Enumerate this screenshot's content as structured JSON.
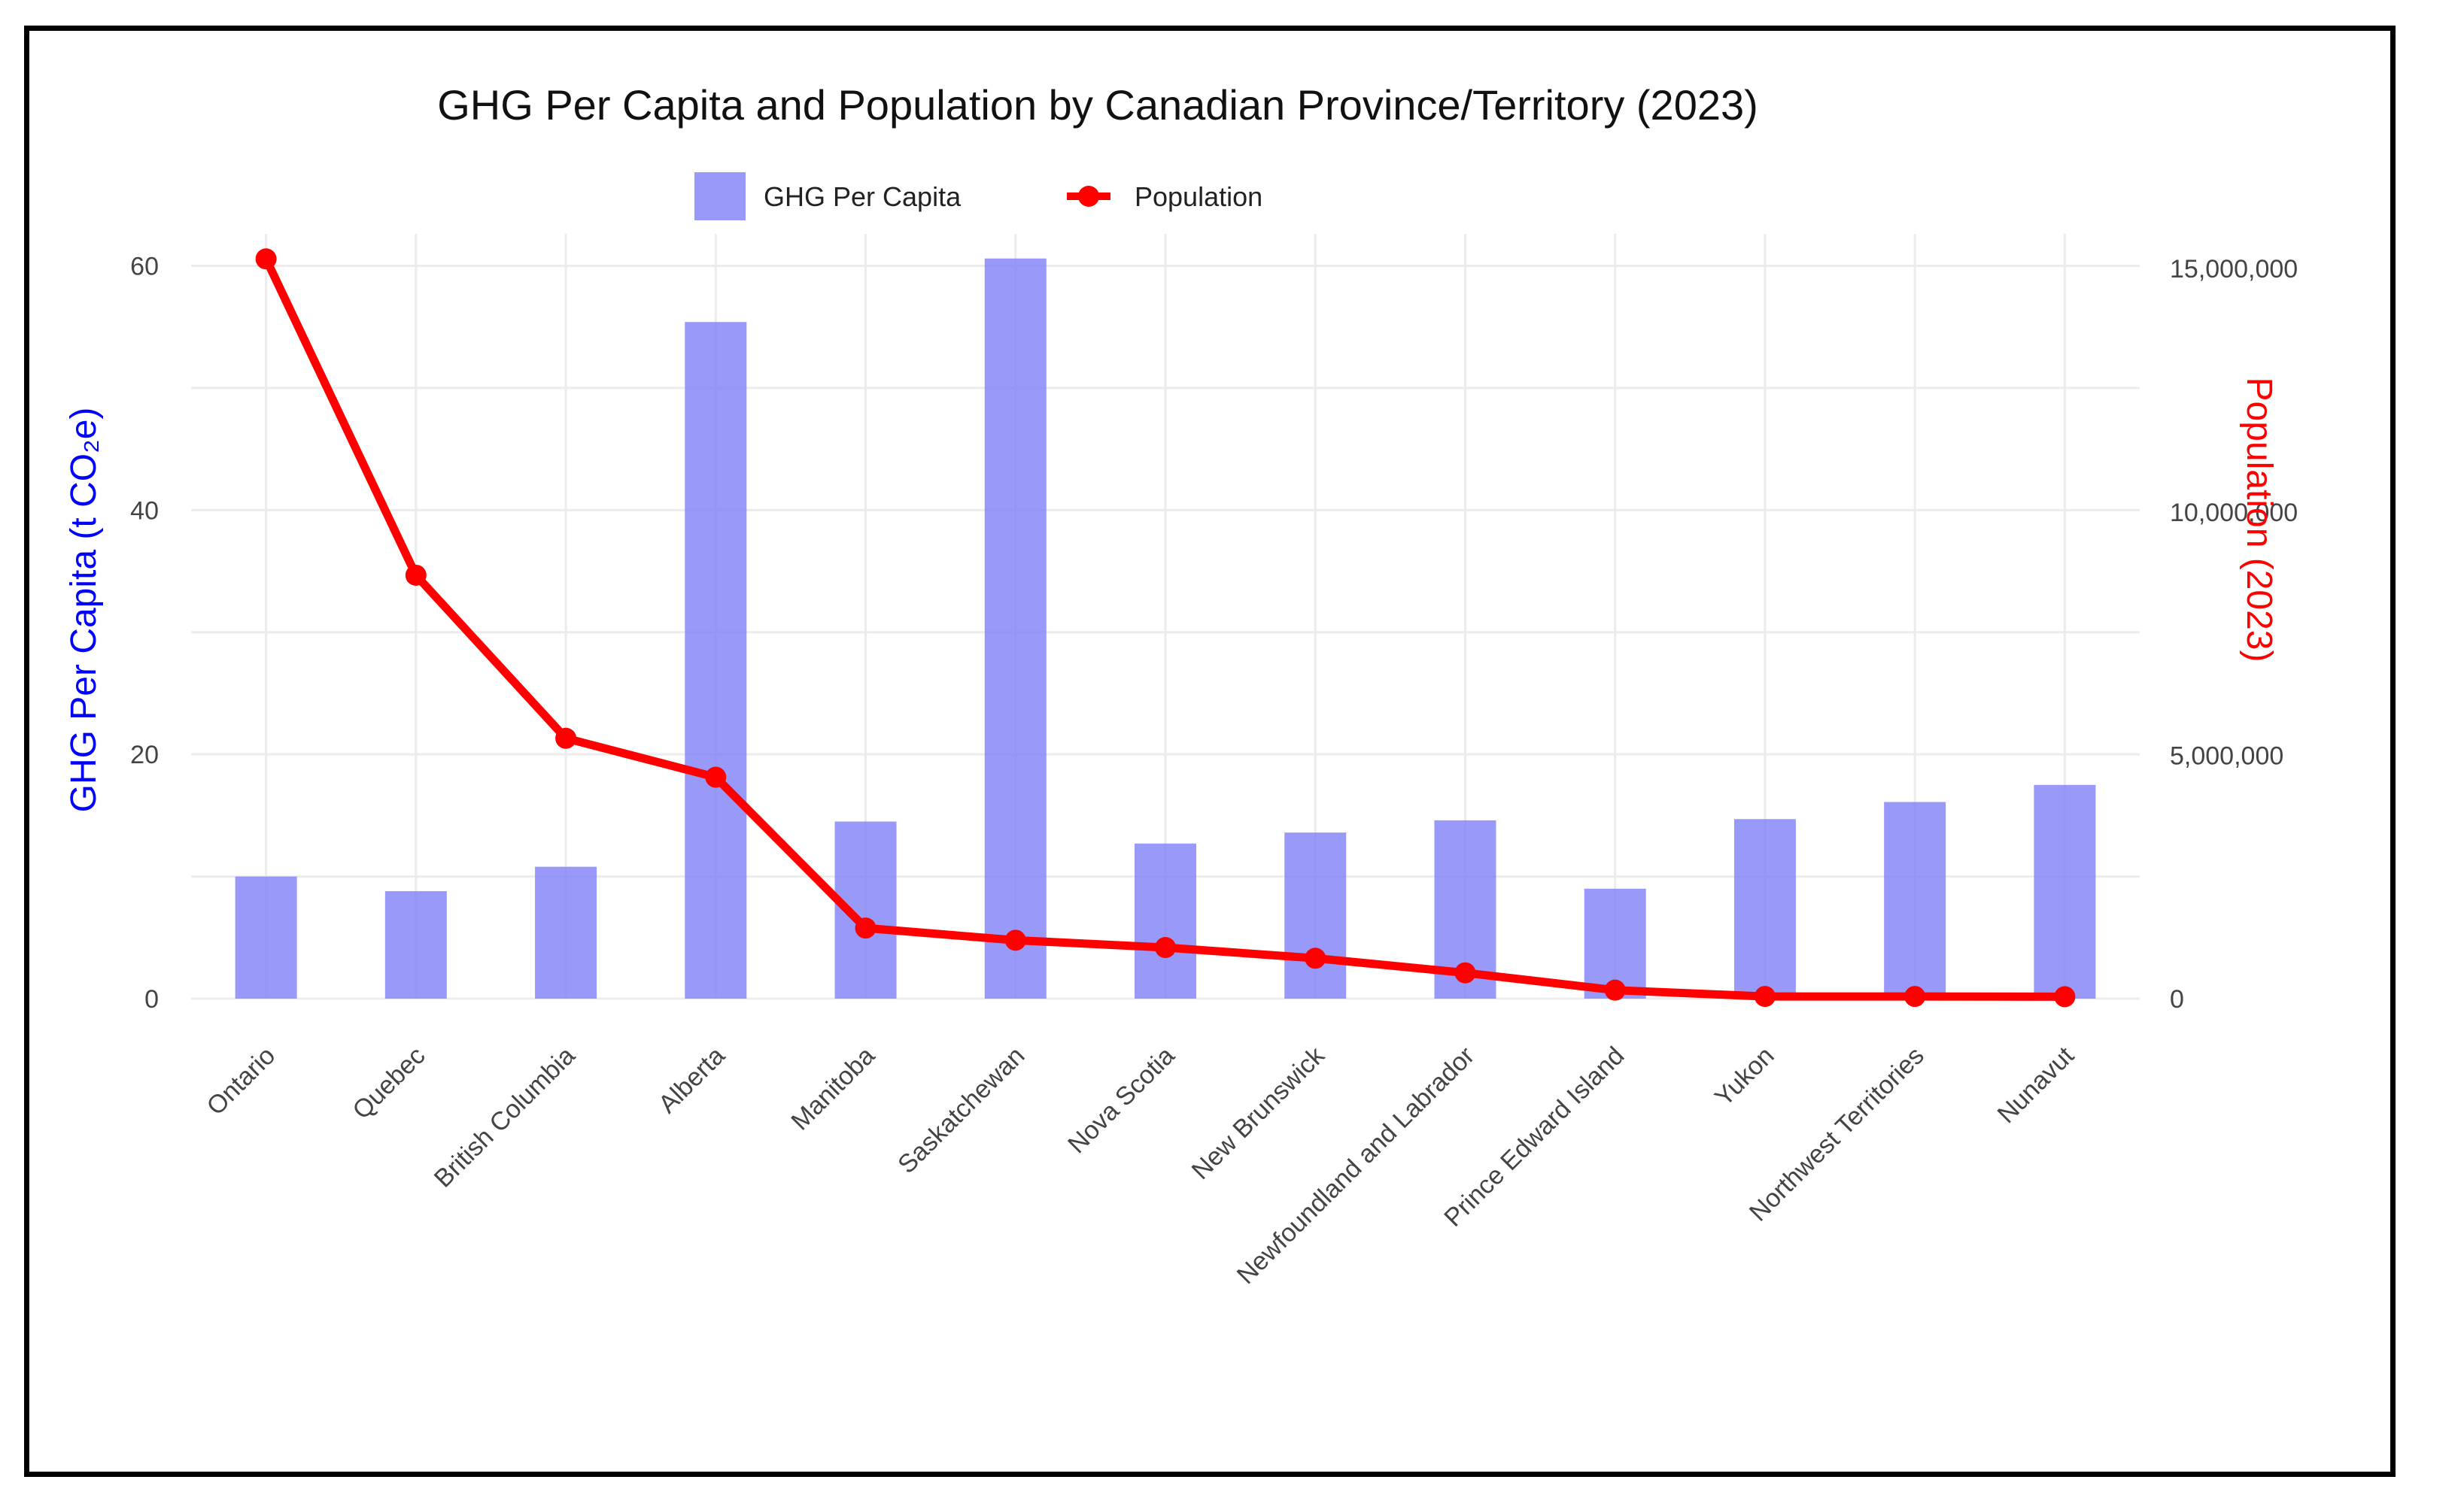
{
  "chart_data": {
    "type": "bar+line",
    "title": "GHG Per Capita and Population by Canadian Province/Territory (2023)",
    "categories": [
      "Ontario",
      "Quebec",
      "British Columbia",
      "Alberta",
      "Manitoba",
      "Saskatchewan",
      "Nova Scotia",
      "New Brunswick",
      "Newfoundland and Labrador",
      "Prince Edward Island",
      "Yukon",
      "Northwest Territories",
      "Nunavut"
    ],
    "series": [
      {
        "name": "GHG Per Capita",
        "type": "bar",
        "axis": "left",
        "color": "#8080f8",
        "values": [
          10.0,
          8.8,
          10.8,
          55.4,
          14.5,
          60.6,
          12.7,
          13.6,
          14.6,
          9.0,
          14.7,
          16.1,
          17.5
        ]
      },
      {
        "name": "Population",
        "type": "line",
        "axis": "right",
        "color": "#ff0000",
        "values": [
          15200000,
          8700000,
          5350000,
          4550000,
          1450000,
          1200000,
          1050000,
          830000,
          530000,
          175000,
          45000,
          45000,
          40000
        ]
      }
    ],
    "ylabel_left": "GHG Per Capita (t CO₂e)",
    "ylabel_right": "Population (2023)",
    "ylim_left": [
      0,
      62
    ],
    "yticks_left": [
      0,
      20,
      40,
      60
    ],
    "ytick_labels_left": [
      "0",
      "20",
      "40",
      "60"
    ],
    "ylim_right": [
      0,
      15560000
    ],
    "yticks_right": [
      0,
      5000000,
      10000000,
      15000000
    ],
    "ytick_labels_right": [
      "0",
      "5,000,000",
      "10,000,000",
      "15,000,000"
    ],
    "left_axis_color": "#0000ff",
    "right_axis_color": "#ff0000",
    "legend_position": "top-center",
    "grid": true
  }
}
